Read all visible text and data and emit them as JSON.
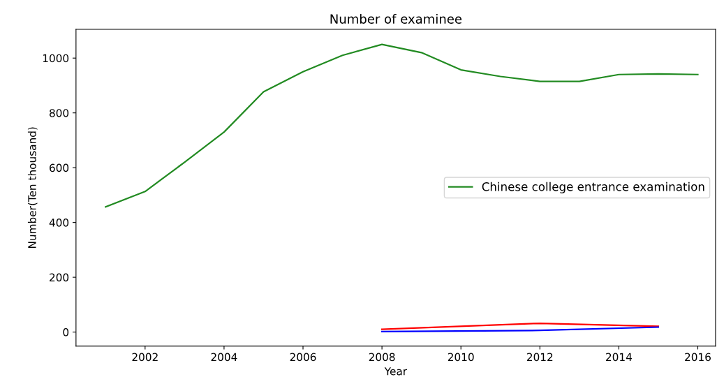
{
  "chart_data": {
    "type": "line",
    "title": "Number of examinee",
    "xlabel": "Year",
    "ylabel": "Number(Ten thousand)",
    "xlim": [
      2000.25,
      2016.45
    ],
    "xticks": [
      2002,
      2004,
      2006,
      2008,
      2010,
      2012,
      2014,
      2016
    ],
    "ylim": [
      -51,
      1105
    ],
    "yticks": [
      0,
      200,
      400,
      600,
      800,
      1000
    ],
    "grid": false,
    "legend": "center right",
    "series": [
      {
        "name": "Chinese college entrance examination",
        "color": "#228b22",
        "x": [
          2001,
          2002,
          2003,
          2004,
          2005,
          2006,
          2007,
          2008,
          2009,
          2010,
          2011,
          2012,
          2013,
          2014,
          2015,
          2016
        ],
        "values": [
          457,
          513,
          620,
          730,
          877,
          950,
          1010,
          1050,
          1020,
          957,
          933,
          915,
          915,
          940,
          942,
          940
        ]
      },
      {
        "color": "#ff0000",
        "x": [
          2008,
          2012,
          2015
        ],
        "values": [
          10,
          32,
          21
        ]
      },
      {
        "color": "#0000ff",
        "x": [
          2008,
          2012,
          2015
        ],
        "values": [
          2,
          6,
          18
        ]
      }
    ]
  }
}
